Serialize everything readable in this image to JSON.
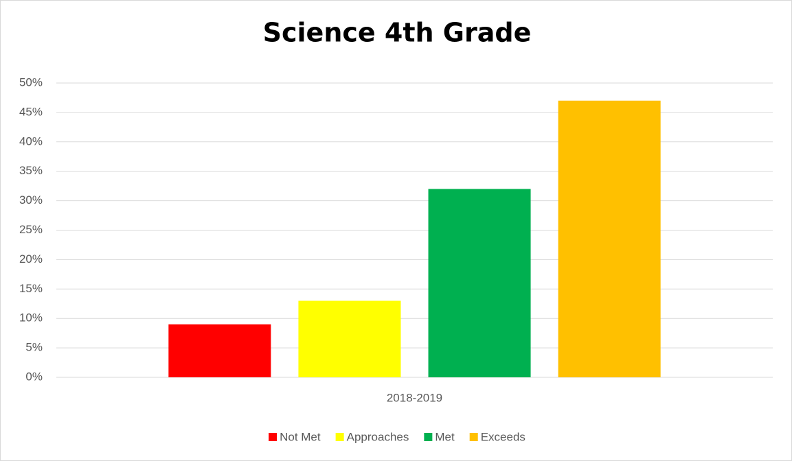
{
  "chart_data": {
    "type": "bar",
    "title": "Science 4th Grade",
    "categories": [
      "2018-2019"
    ],
    "series": [
      {
        "name": "Not Met",
        "color": "#ff0000",
        "values": [
          9
        ]
      },
      {
        "name": "Approaches",
        "color": "#ffff00",
        "values": [
          13
        ]
      },
      {
        "name": "Met",
        "color": "#00b050",
        "values": [
          32
        ]
      },
      {
        "name": "Exceeds",
        "color": "#ffc000",
        "values": [
          47
        ]
      }
    ],
    "ylim": [
      0,
      50
    ],
    "yticks": [
      {
        "value": 0,
        "label": "0%"
      },
      {
        "value": 5,
        "label": "5%"
      },
      {
        "value": 10,
        "label": "10%"
      },
      {
        "value": 15,
        "label": "15%"
      },
      {
        "value": 20,
        "label": "20%"
      },
      {
        "value": 25,
        "label": "25%"
      },
      {
        "value": 30,
        "label": "30%"
      },
      {
        "value": 35,
        "label": "35%"
      },
      {
        "value": 40,
        "label": "40%"
      },
      {
        "value": 45,
        "label": "45%"
      },
      {
        "value": 50,
        "label": "50%"
      }
    ],
    "grid": true,
    "legend": "bottom"
  }
}
